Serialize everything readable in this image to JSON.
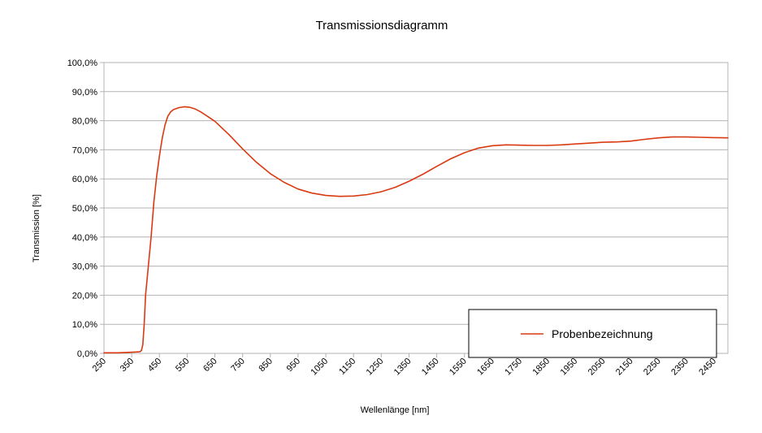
{
  "chart_data": {
    "type": "line",
    "title": "Transmissionsdiagramm",
    "xlabel": "Wellenlänge [nm]",
    "ylabel": "Transmission [%]",
    "xlim": [
      250,
      2500
    ],
    "ylim": [
      0,
      100
    ],
    "x_ticks": [
      "250",
      "350",
      "450",
      "550",
      "650",
      "750",
      "850",
      "950",
      "1050",
      "1150",
      "1250",
      "1350",
      "1450",
      "1550",
      "1650",
      "1750",
      "1850",
      "1950",
      "2050",
      "2150",
      "2250",
      "2350",
      "2450"
    ],
    "y_ticks": [
      "0,0%",
      "10,0%",
      "20,0%",
      "30,0%",
      "40,0%",
      "50,0%",
      "60,0%",
      "70,0%",
      "80,0%",
      "90,0%",
      "100,0%"
    ],
    "grid": true,
    "legend_position": "bottom-right",
    "series": [
      {
        "name": "Probenbezeichnung",
        "color": "#d93a11",
        "x": [
          250,
          300,
          350,
          370,
          380,
          385,
          390,
          395,
          400,
          410,
          420,
          430,
          440,
          450,
          460,
          470,
          480,
          490,
          500,
          520,
          540,
          560,
          580,
          600,
          650,
          700,
          750,
          800,
          850,
          900,
          950,
          1000,
          1050,
          1100,
          1150,
          1200,
          1250,
          1300,
          1350,
          1400,
          1450,
          1500,
          1550,
          1600,
          1650,
          1700,
          1750,
          1800,
          1850,
          1900,
          1950,
          2000,
          2050,
          2100,
          2150,
          2200,
          2250,
          2300,
          2350,
          2400,
          2450,
          2500
        ],
        "y": [
          0.2,
          0.2,
          0.4,
          0.5,
          0.6,
          1.0,
          3.0,
          10.0,
          20.0,
          30.0,
          40.0,
          52.0,
          61.0,
          68.0,
          74.0,
          78.5,
          81.5,
          83.0,
          83.8,
          84.5,
          84.8,
          84.6,
          84.0,
          83.0,
          79.8,
          75.3,
          70.3,
          65.7,
          61.8,
          58.8,
          56.5,
          55.1,
          54.3,
          54.0,
          54.1,
          54.6,
          55.6,
          57.1,
          59.2,
          61.6,
          64.3,
          66.9,
          69.0,
          70.6,
          71.4,
          71.7,
          71.6,
          71.5,
          71.5,
          71.7,
          72.0,
          72.3,
          72.6,
          72.7,
          73.0,
          73.6,
          74.1,
          74.4,
          74.4,
          74.3,
          74.2,
          74.1
        ]
      }
    ]
  }
}
